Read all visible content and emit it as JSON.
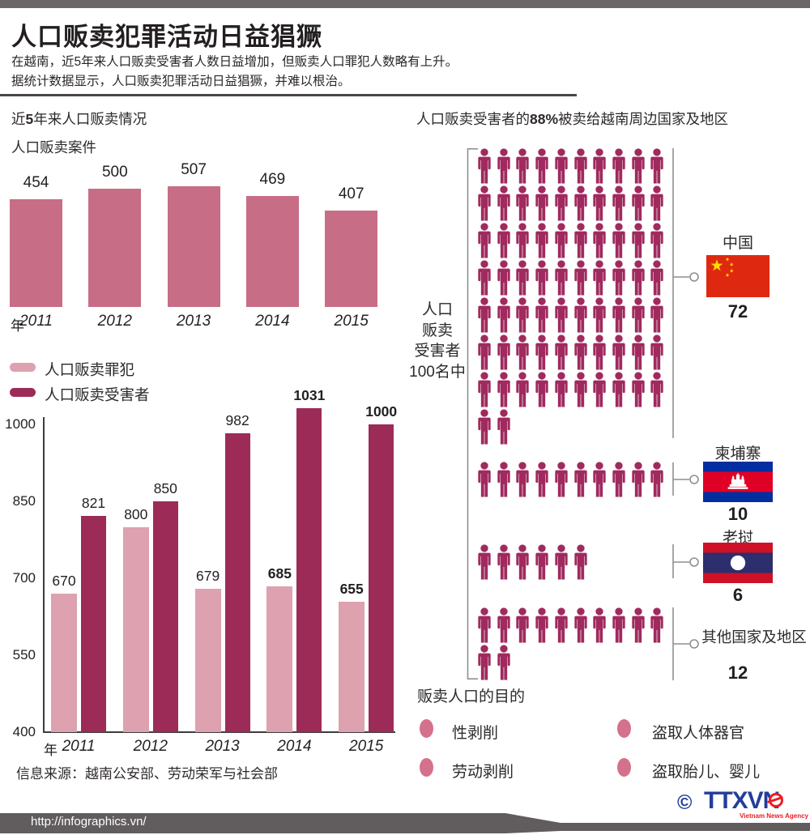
{
  "page": {
    "top_title": "人口贩卖犯罪活动日益猖獗",
    "subtitle1": "在越南，近5年来人口贩卖受害者人数日益增加，但贩卖人口罪犯人数略有上升。",
    "subtitle2": "据统计数据显示，人口贩卖犯罪活动日益猖獗，并难以根治。",
    "footer_url": "http://infographics.vn/",
    "logo": {
      "copyright": "©",
      "text": "TTXVN",
      "tagline": "Vietnam News Agency"
    },
    "colors": {
      "rose_bar": "#c76d86",
      "light_pink_bar": "#dda1af",
      "maroon_bar": "#9c2b58",
      "person_icon": "#a02a5e",
      "purpose_bullet": "#d4718c",
      "top_bar_gray": "#6b6667",
      "footer_gray": "#615d5e",
      "ttx_blue": "#233e99",
      "ttx_red": "#ed1c24"
    }
  },
  "left_section": {
    "header": {
      "pre": "近",
      "bold": "5",
      "post": "年来人口贩卖情况"
    },
    "cases_chart_title": "人口贩卖案件",
    "year_axis_label": "年",
    "legend": [
      {
        "label": "人口贩卖罪犯",
        "color": "#dda1af"
      },
      {
        "label": "人口贩卖受害者",
        "color": "#9c2b58"
      }
    ],
    "source": "信息来源：越南公安部、劳动荣军与社会部"
  },
  "right_section": {
    "header": {
      "pre": "人口贩卖受害者的",
      "bold": "88%",
      "post": "被卖给越南周边国家及地区"
    },
    "pictogram": {
      "unit_label_lines": [
        "人口",
        "贩卖",
        "受害者",
        "100名中"
      ],
      "groups": [
        {
          "name": "中国",
          "count": 72,
          "flag": "china"
        },
        {
          "name": "柬埔寨",
          "count": 10,
          "flag": "cambodia"
        },
        {
          "name": "老挝",
          "count": 6,
          "flag": "laos"
        },
        {
          "name": "其他国家及地区",
          "count": 12,
          "flag": "none"
        }
      ]
    },
    "purposes": {
      "header": "贩卖人口的目的",
      "items": [
        "性剥削",
        "盗取人体器官",
        "劳动剥削",
        "盗取胎儿、婴儿"
      ]
    }
  },
  "chart_data": [
    {
      "type": "bar",
      "title": "人口贩卖案件",
      "categories": [
        "2011",
        "2012",
        "2013",
        "2014",
        "2015"
      ],
      "values": [
        454,
        500,
        507,
        469,
        407
      ],
      "bar_color": "#c76d86",
      "xlabel": "年",
      "ylabel": "",
      "value_labels": true,
      "axis_visible": false
    },
    {
      "type": "bar",
      "title": "",
      "categories": [
        "2011",
        "2012",
        "2013",
        "2014",
        "2015"
      ],
      "series": [
        {
          "name": "人口贩卖罪犯",
          "color": "#dda1af",
          "values": [
            670,
            800,
            679,
            685,
            655
          ]
        },
        {
          "name": "人口贩卖受害者",
          "color": "#9c2b58",
          "values": [
            821,
            850,
            982,
            1031,
            1000
          ]
        }
      ],
      "xlabel": "年",
      "ylabel": "",
      "ylim": [
        400,
        1000
      ],
      "yticks": [
        400,
        550,
        700,
        850,
        1000
      ],
      "bold_value_labels": [
        685,
        655,
        1031,
        1000
      ],
      "legend_position": "top-left",
      "grid": false
    },
    {
      "type": "pictogram",
      "title": "人口贩卖受害者100名中",
      "subtitle": "人口贩卖受害者的88%被卖给越南周边国家及地区",
      "categories": [
        "中国",
        "柬埔寨",
        "老挝",
        "其他国家及地区"
      ],
      "values": [
        72,
        10,
        6,
        12
      ],
      "total": 100,
      "icons_per_row": 10
    }
  ]
}
